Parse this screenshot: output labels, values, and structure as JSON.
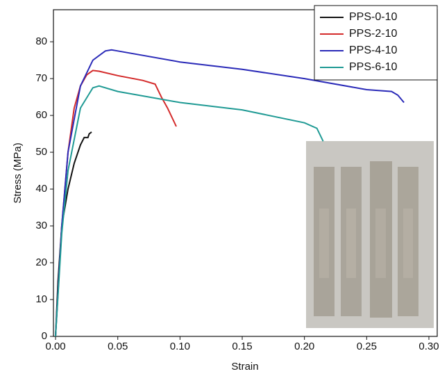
{
  "chart_data": {
    "type": "line",
    "x_label": "Strain",
    "y_label": "Stress (MPa)",
    "xlim": [
      -0.0017,
      0.3067
    ],
    "ylim": [
      0,
      88.7
    ],
    "xticks": [
      {
        "value": 0,
        "label": "0.00"
      },
      {
        "value": 0.05,
        "label": "0.05"
      },
      {
        "value": 0.1,
        "label": "0.10"
      },
      {
        "value": 0.15,
        "label": "0.15"
      },
      {
        "value": 0.2,
        "label": "0.20"
      },
      {
        "value": 0.25,
        "label": "0.25"
      },
      {
        "value": 0.3,
        "label": "0.30"
      }
    ],
    "yticks": [
      0,
      10,
      20,
      30,
      40,
      50,
      60,
      70,
      80
    ],
    "legend": "upper right",
    "series": [
      {
        "name": "PPS-0-10",
        "color": "#111111",
        "x": [
          0,
          0.002,
          0.005,
          0.01,
          0.015,
          0.02,
          0.023,
          0.026,
          0.027,
          0.029
        ],
        "values": [
          0,
          15,
          30,
          40,
          47,
          52,
          54,
          54,
          55,
          55.5
        ]
      },
      {
        "name": "PPS-2-10",
        "color": "#d42a2a",
        "x": [
          0,
          0.005,
          0.01,
          0.015,
          0.02,
          0.025,
          0.03,
          0.035,
          0.05,
          0.07,
          0.08,
          0.085,
          0.09,
          0.097
        ],
        "values": [
          0,
          30,
          50,
          62,
          68,
          71,
          72.2,
          72,
          70.8,
          69.5,
          68.5,
          65,
          62,
          57
        ]
      },
      {
        "name": "PPS-4-10",
        "color": "#2a2ab8",
        "x": [
          0,
          0.005,
          0.01,
          0.02,
          0.03,
          0.04,
          0.045,
          0.05,
          0.1,
          0.15,
          0.2,
          0.25,
          0.27,
          0.275,
          0.28
        ],
        "values": [
          0,
          30,
          50,
          68,
          75,
          77.5,
          77.8,
          77.5,
          74.5,
          72.5,
          70,
          67,
          66.5,
          65.5,
          63.5
        ]
      },
      {
        "name": "PPS-6-10",
        "color": "#1f9a94",
        "x": [
          0,
          0.005,
          0.01,
          0.02,
          0.03,
          0.035,
          0.05,
          0.1,
          0.15,
          0.2,
          0.21,
          0.215
        ],
        "values": [
          0,
          28,
          45,
          62,
          67.5,
          68,
          66.5,
          63.5,
          61.5,
          58,
          56.5,
          53
        ]
      }
    ]
  }
}
